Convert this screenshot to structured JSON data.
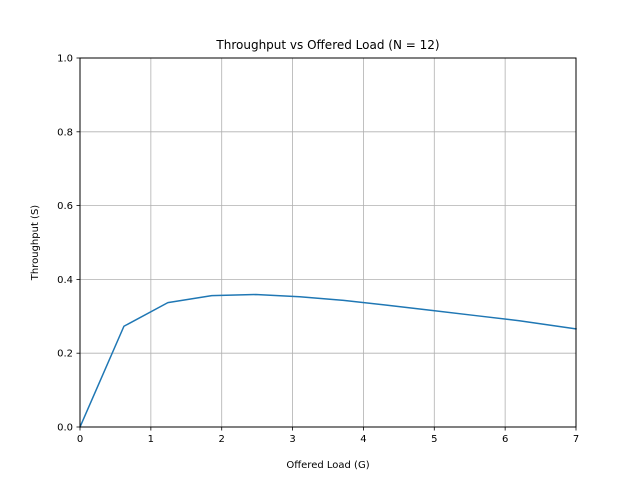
{
  "chart_data": {
    "type": "line",
    "title": "Throughput vs Offered Load (N = 12)",
    "xlabel": "Offered Load (G)",
    "ylabel": "Throughput (S)",
    "xlim": [
      0,
      7
    ],
    "ylim": [
      0,
      1.0
    ],
    "xticks": [
      "0",
      "1",
      "2",
      "3",
      "4",
      "5",
      "6",
      "7"
    ],
    "xtick_values": [
      0,
      1,
      2,
      3,
      4,
      5,
      6,
      7
    ],
    "yticks": [
      "0.0",
      "0.2",
      "0.4",
      "0.6",
      "0.8",
      "1.0"
    ],
    "ytick_values": [
      0,
      0.2,
      0.4,
      0.6,
      0.8,
      1.0
    ],
    "grid": true,
    "series": [
      {
        "color": "#1f77b4",
        "x": [
          0,
          0.62,
          1.24,
          1.86,
          2.48,
          3.1,
          3.72,
          4.34,
          4.96,
          5.58,
          6.2,
          7.0
        ],
        "y": [
          0.0,
          0.273,
          0.337,
          0.356,
          0.359,
          0.353,
          0.343,
          0.33,
          0.316,
          0.302,
          0.288,
          0.266
        ]
      }
    ]
  }
}
